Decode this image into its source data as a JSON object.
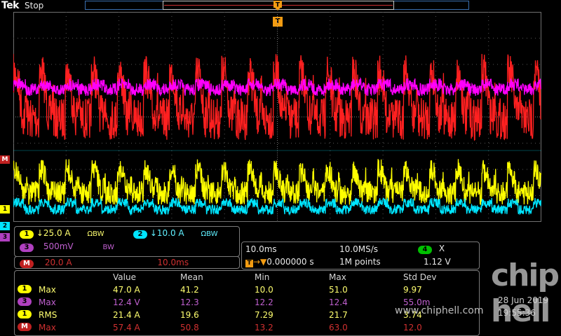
{
  "top": {
    "brand": "Tek",
    "status": "Stop",
    "trigger_marker": "T"
  },
  "waveform_marks": {
    "M": "M",
    "ch1": "1",
    "ch2": "2",
    "ch3": "3"
  },
  "channels": [
    {
      "badge": "1",
      "scale": "↓25.0 A",
      "bw": "ΩBW",
      "color": "#ffff00"
    },
    {
      "badge": "2",
      "scale": "↓10.0 A",
      "bw": "ΩBW",
      "color": "#00e5ff"
    },
    {
      "badge": "3",
      "scale": "500mV",
      "bw": "BW",
      "color": "#b040c0"
    },
    {
      "badge": "M",
      "scale": "20.0 A",
      "time": "10.0ms",
      "color": "#c02020"
    }
  ],
  "horizontal": {
    "timebase": "10.0ms",
    "sample_rate": "10.0MS/s",
    "trigger_pos": "T→▼0.000000 s",
    "record_length": "1M points",
    "trig_source": "4",
    "trig_slope": "Ⅹ",
    "trig_level": "1.12 V"
  },
  "measurements": {
    "headers": [
      "Value",
      "Mean",
      "Min",
      "Max",
      "Std Dev"
    ],
    "rows": [
      {
        "badge": "1",
        "name": "Max",
        "value": "47.0 A",
        "mean": "41.2",
        "min": "10.0",
        "max": "51.0",
        "std": "9.97",
        "color": "#ffff00",
        "text": "#ffff70"
      },
      {
        "badge": "3",
        "name": "Max",
        "value": "12.4 V",
        "mean": "12.3",
        "min": "12.2",
        "max": "12.4",
        "std": "55.0m",
        "color": "#b040c0",
        "text": "#c060d0"
      },
      {
        "badge": "1",
        "name": "RMS",
        "value": "21.4 A",
        "mean": "19.6",
        "min": "7.29",
        "max": "21.7",
        "std": "3.74",
        "color": "#ffff00",
        "text": "#ffff70"
      },
      {
        "badge": "M",
        "name": "Max",
        "value": "57.4 A",
        "mean": "50.8",
        "min": "13.2",
        "max": "63.0",
        "std": "12.0",
        "color": "#c02020",
        "text": "#d03030"
      }
    ]
  },
  "clock": {
    "date": "28 Jun  2019",
    "time": "19:55:36"
  },
  "watermark": {
    "logo": "chip hell",
    "url": "www.chiphell.com"
  },
  "colors": {
    "grid": "#707070",
    "trigger": "#f39c12",
    "ch1": "#ffff00",
    "ch2": "#00e5ff",
    "ch3": "#ff00ff",
    "math": "#ff2020"
  }
}
